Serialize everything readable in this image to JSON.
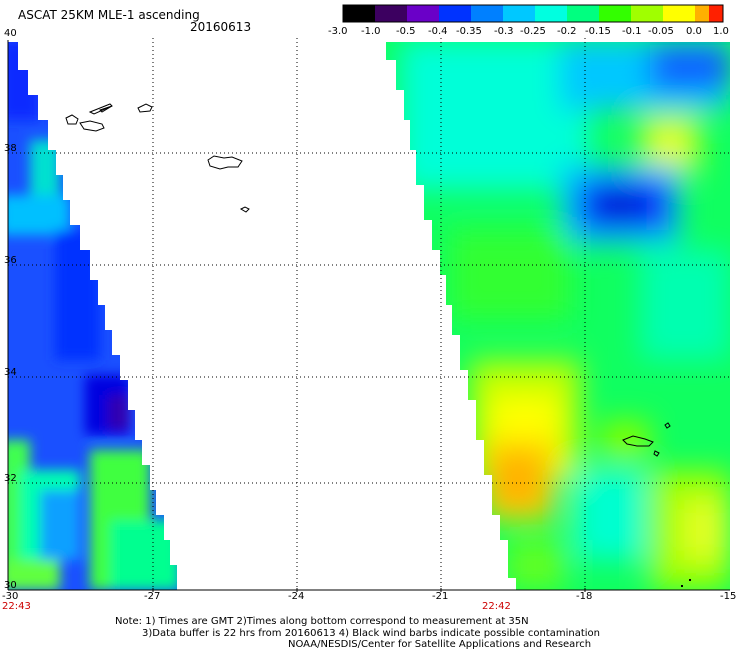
{
  "header": {
    "title": "ASCAT 25KM MLE-1 ascending",
    "date": "20160613"
  },
  "colorbar": {
    "labels": [
      "-3.0",
      "-1.0",
      "-0.5",
      "-0.4",
      "-0.35",
      "-0.3",
      "-0.25",
      "-0.2",
      "-0.15",
      "-0.1",
      "-0.05",
      "0.0",
      "1.0"
    ],
    "colors": [
      "#000000",
      "#3c0060",
      "#6a00c8",
      "#0033ff",
      "#0080ff",
      "#00c8ff",
      "#00ffe0",
      "#00ff80",
      "#33ff00",
      "#a0ff00",
      "#ffff00",
      "#ffb000",
      "#ff2000"
    ]
  },
  "axes": {
    "x_ticks": [
      "-30",
      "-27",
      "-24",
      "-21",
      "-18",
      "-15"
    ],
    "y_ticks": [
      "40",
      "38",
      "36",
      "34",
      "32",
      "30"
    ]
  },
  "passes": {
    "left_time": "22:43",
    "right_time": "22:42"
  },
  "notes": {
    "line1": "Note: 1) Times are GMT 2)Times along bottom correspond to measurement at 35N",
    "line2": "3)Data buffer is 22 hrs from 20160613 4) Black wind barbs indicate possible contamination",
    "line3": "NOAA/NESDIS/Center for Satellite Applications and Research"
  }
}
